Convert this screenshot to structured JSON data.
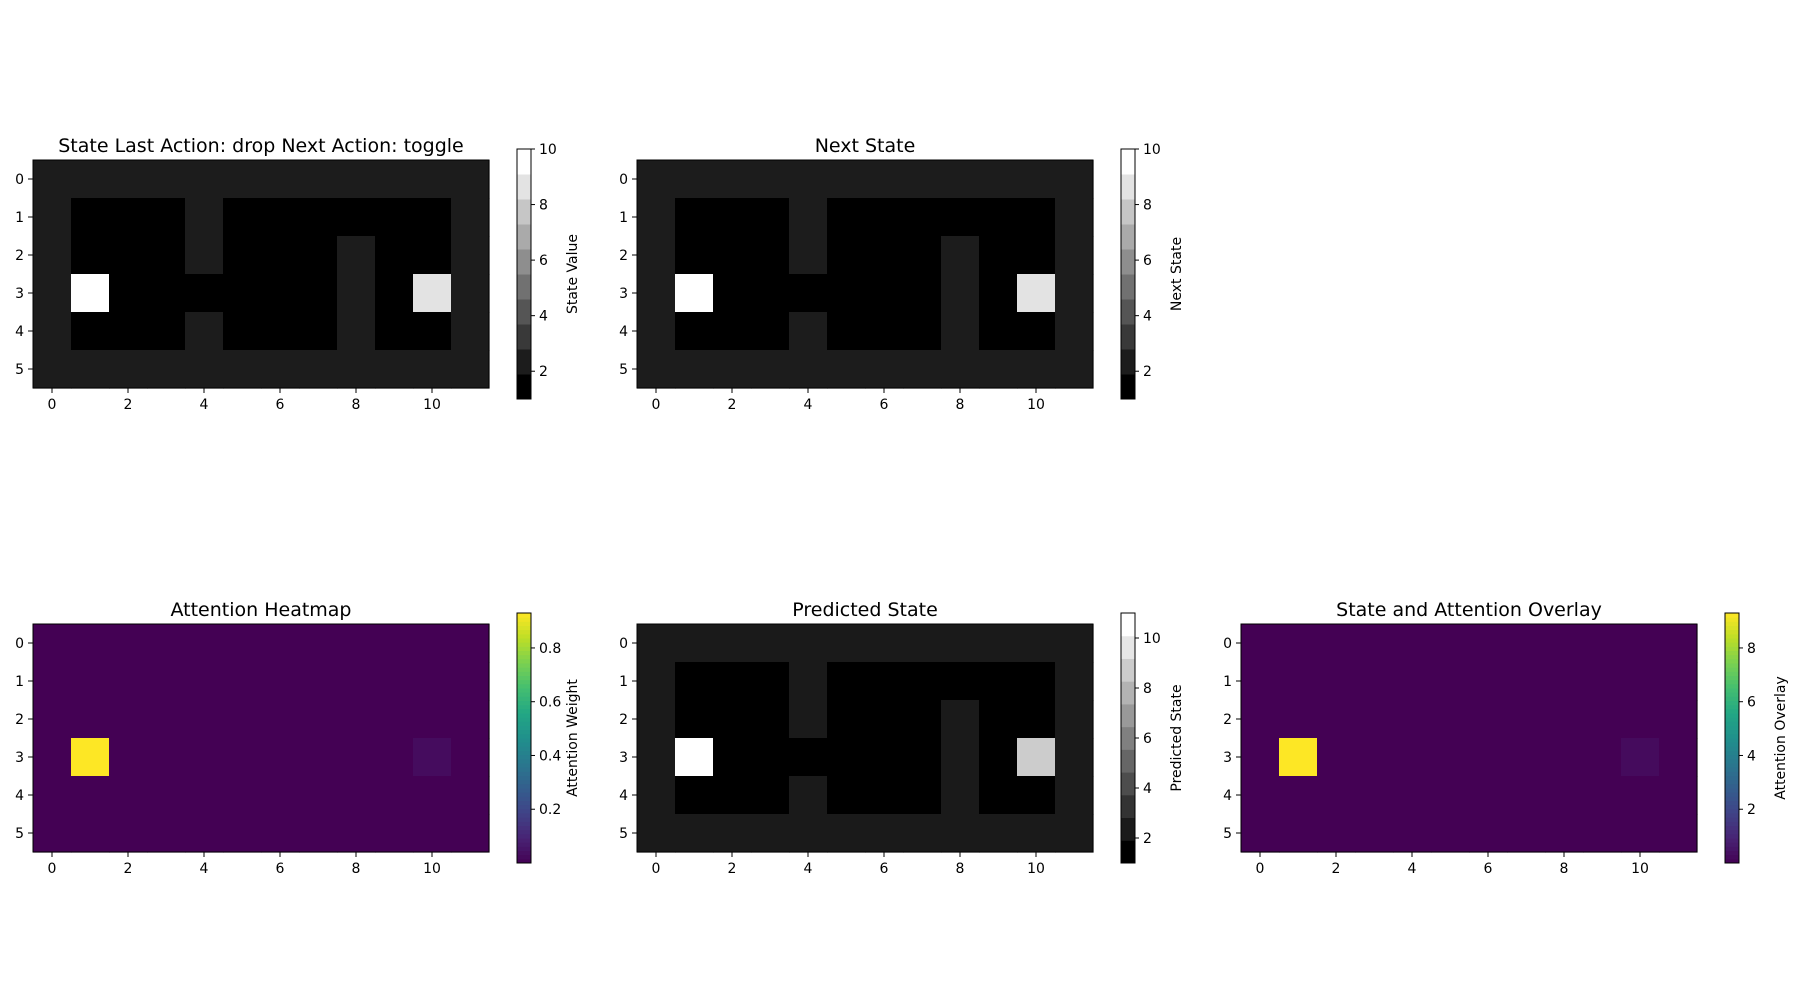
{
  "chart_data": [
    {
      "type": "heatmap",
      "title": "State   Last Action: drop   Next Action: toggle",
      "colormap": "gray",
      "discrete_levels": 10,
      "colorbar_label": "State Value",
      "clim": [
        1,
        10
      ],
      "colorbar_ticks": [
        2,
        4,
        6,
        8,
        10
      ],
      "x_ticks": [
        0,
        2,
        4,
        6,
        8,
        10
      ],
      "y_ticks": [
        0,
        1,
        2,
        3,
        4,
        5
      ],
      "grid": [
        [
          2,
          2,
          2,
          2,
          2,
          2,
          2,
          2,
          2,
          2,
          2,
          2
        ],
        [
          2,
          1,
          1,
          1,
          2,
          1,
          1,
          1,
          1,
          1,
          1,
          2
        ],
        [
          2,
          1,
          1,
          1,
          2,
          1,
          1,
          1,
          2,
          1,
          1,
          2
        ],
        [
          2,
          10,
          1,
          1,
          1,
          1,
          1,
          1,
          2,
          1,
          9,
          2
        ],
        [
          2,
          1,
          1,
          1,
          2,
          1,
          1,
          1,
          2,
          1,
          1,
          2
        ],
        [
          2,
          2,
          2,
          2,
          2,
          2,
          2,
          2,
          2,
          2,
          2,
          2
        ]
      ]
    },
    {
      "type": "heatmap",
      "title": "Next State",
      "colormap": "gray",
      "discrete_levels": 10,
      "colorbar_label": "Next State",
      "clim": [
        1,
        10
      ],
      "colorbar_ticks": [
        2,
        4,
        6,
        8,
        10
      ],
      "x_ticks": [
        0,
        2,
        4,
        6,
        8,
        10
      ],
      "y_ticks": [
        0,
        1,
        2,
        3,
        4,
        5
      ],
      "grid": [
        [
          2,
          2,
          2,
          2,
          2,
          2,
          2,
          2,
          2,
          2,
          2,
          2
        ],
        [
          2,
          1,
          1,
          1,
          2,
          1,
          1,
          1,
          1,
          1,
          1,
          2
        ],
        [
          2,
          1,
          1,
          1,
          2,
          1,
          1,
          1,
          2,
          1,
          1,
          2
        ],
        [
          2,
          10,
          1,
          1,
          1,
          1,
          1,
          1,
          2,
          1,
          9,
          2
        ],
        [
          2,
          1,
          1,
          1,
          2,
          1,
          1,
          1,
          2,
          1,
          1,
          2
        ],
        [
          2,
          2,
          2,
          2,
          2,
          2,
          2,
          2,
          2,
          2,
          2,
          2
        ]
      ]
    },
    {
      "type": "heatmap",
      "title": "Attention Heatmap",
      "colormap": "viridis",
      "colorbar_label": "Attention Weight",
      "clim": [
        0.0,
        0.93
      ],
      "colorbar_ticks": [
        0.2,
        0.4,
        0.6,
        0.8
      ],
      "x_ticks": [
        0,
        2,
        4,
        6,
        8,
        10
      ],
      "y_ticks": [
        0,
        1,
        2,
        3,
        4,
        5
      ],
      "grid": [
        [
          0,
          0,
          0,
          0,
          0,
          0,
          0,
          0,
          0,
          0,
          0,
          0
        ],
        [
          0,
          0,
          0,
          0,
          0,
          0,
          0,
          0,
          0,
          0,
          0,
          0
        ],
        [
          0,
          0,
          0,
          0,
          0,
          0,
          0,
          0,
          0,
          0,
          0,
          0
        ],
        [
          0,
          0.93,
          0,
          0,
          0,
          0,
          0,
          0,
          0,
          0,
          0.03,
          0
        ],
        [
          0,
          0,
          0,
          0,
          0,
          0,
          0,
          0,
          0,
          0,
          0,
          0
        ],
        [
          0,
          0,
          0,
          0,
          0,
          0,
          0,
          0,
          0,
          0,
          0,
          0
        ]
      ]
    },
    {
      "type": "heatmap",
      "title": "Predicted State",
      "colormap": "gray",
      "discrete_levels": 11,
      "colorbar_label": "Predicted State",
      "clim": [
        1,
        11
      ],
      "colorbar_ticks": [
        2,
        4,
        6,
        8,
        10
      ],
      "x_ticks": [
        0,
        2,
        4,
        6,
        8,
        10
      ],
      "y_ticks": [
        0,
        1,
        2,
        3,
        4,
        5
      ],
      "grid": [
        [
          2,
          2,
          2,
          2,
          2,
          2,
          2,
          2,
          2,
          2,
          2,
          2
        ],
        [
          2,
          1,
          1,
          1,
          2,
          1,
          1,
          1,
          1,
          1,
          1,
          2
        ],
        [
          2,
          1,
          1,
          1,
          2,
          1,
          1,
          1,
          2,
          1,
          1,
          2
        ],
        [
          2,
          11,
          1,
          1,
          1,
          1,
          1,
          1,
          2,
          1,
          9,
          2
        ],
        [
          2,
          1,
          1,
          1,
          2,
          1,
          1,
          1,
          2,
          1,
          1,
          2
        ],
        [
          2,
          2,
          2,
          2,
          2,
          2,
          2,
          2,
          2,
          2,
          2,
          2
        ]
      ]
    },
    {
      "type": "heatmap",
      "title": "State and Attention Overlay",
      "colormap": "viridis",
      "colorbar_label": "Attention Overlay",
      "clim": [
        0.0,
        9.3
      ],
      "colorbar_ticks": [
        2,
        4,
        6,
        8
      ],
      "x_ticks": [
        0,
        2,
        4,
        6,
        8,
        10
      ],
      "y_ticks": [
        0,
        1,
        2,
        3,
        4,
        5
      ],
      "grid": [
        [
          0,
          0,
          0,
          0,
          0,
          0,
          0,
          0,
          0,
          0,
          0,
          0
        ],
        [
          0,
          0,
          0,
          0,
          0,
          0,
          0,
          0,
          0,
          0,
          0,
          0
        ],
        [
          0,
          0,
          0,
          0,
          0,
          0,
          0,
          0,
          0,
          0,
          0,
          0
        ],
        [
          0,
          9.3,
          0,
          0,
          0,
          0,
          0,
          0,
          0,
          0,
          0.27,
          0
        ],
        [
          0,
          0,
          0,
          0,
          0,
          0,
          0,
          0,
          0,
          0,
          0,
          0
        ],
        [
          0,
          0,
          0,
          0,
          0,
          0,
          0,
          0,
          0,
          0,
          0,
          0
        ]
      ]
    }
  ]
}
